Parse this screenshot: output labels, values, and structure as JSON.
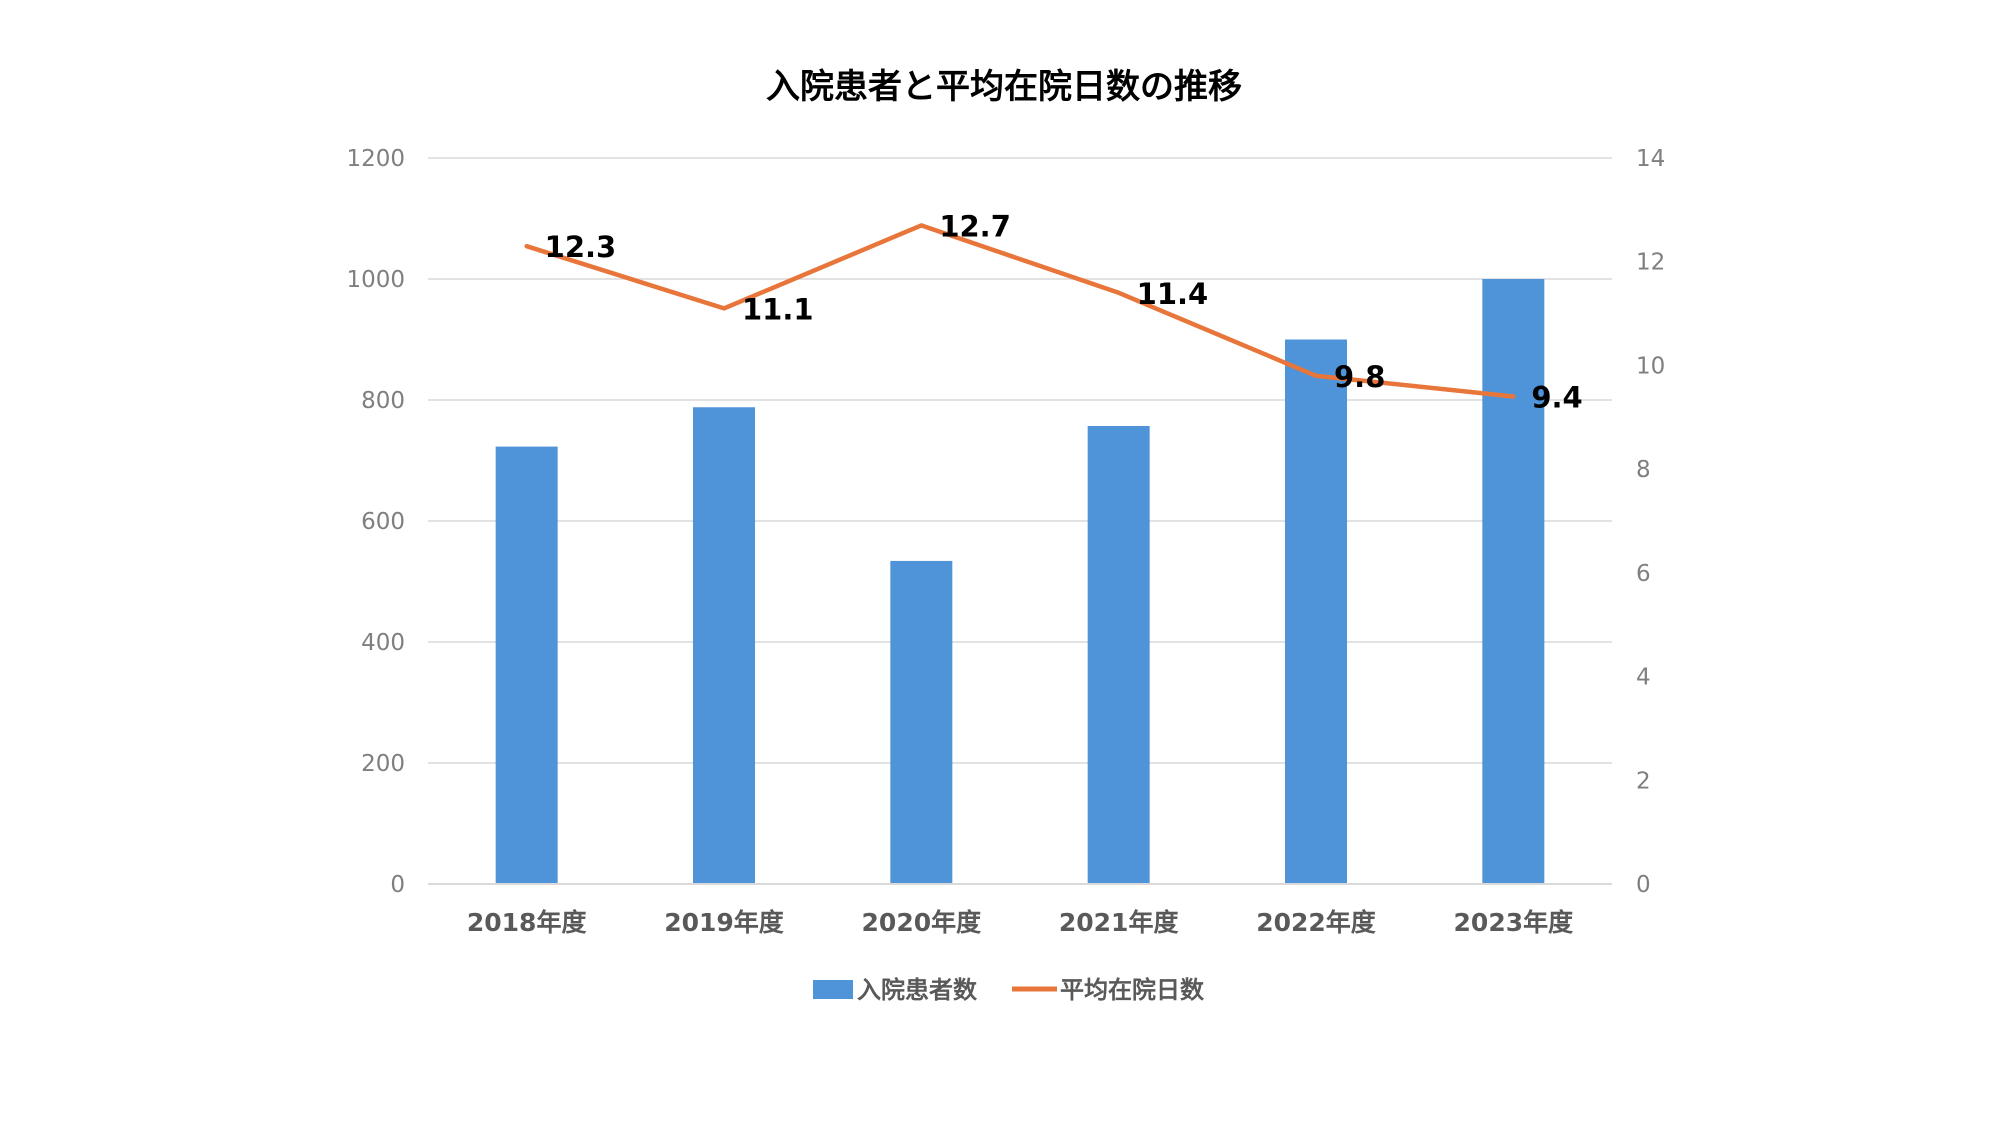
{
  "chart_data": {
    "type": "bar",
    "title": "入院患者と平均在院日数の推移",
    "categories": [
      "2018年度",
      "2019年度",
      "2020年度",
      "2021年度",
      "2022年度",
      "2023年度"
    ],
    "series": [
      {
        "name": "入院患者数",
        "type": "bar",
        "axis": "left",
        "color": "#4f94d8",
        "values": [
          723,
          788,
          534,
          757,
          900,
          1000
        ]
      },
      {
        "name": "平均在院日数",
        "type": "line",
        "axis": "right",
        "color": "#e8763a",
        "values": [
          12.3,
          11.1,
          12.7,
          11.4,
          9.8,
          9.4
        ],
        "data_labels": [
          "12.3",
          "11.1",
          "12.7",
          "11.4",
          "9.8",
          "9.4"
        ]
      }
    ],
    "y_left": {
      "ylim": [
        0,
        1200
      ],
      "ticks": [
        "0",
        "200",
        "400",
        "600",
        "800",
        "1000",
        "1200"
      ]
    },
    "y_right": {
      "ylim": [
        0,
        14
      ],
      "ticks": [
        "0",
        "2",
        "4",
        "6",
        "8",
        "10",
        "12",
        "14"
      ]
    },
    "grid": true,
    "legend_position": "bottom"
  }
}
